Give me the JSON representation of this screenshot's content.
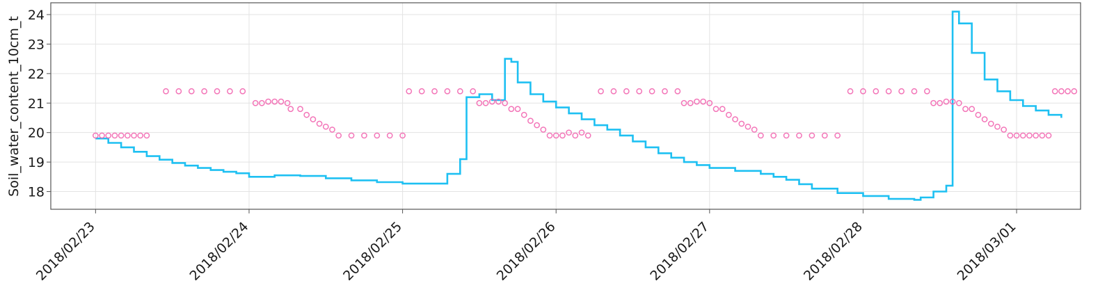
{
  "chart_data": {
    "type": "line",
    "title": "",
    "xlabel": "",
    "ylabel": "Soil_water_content_10cm_t",
    "x_axis": {
      "type": "date",
      "ticks": [
        "2018/02/23",
        "2018/02/24",
        "2018/02/25",
        "2018/02/26",
        "2018/02/27",
        "2018/02/28",
        "2018/03/01"
      ],
      "range": [
        "2018/02/22 17:00",
        "2018/03/01 10:00"
      ]
    },
    "y_axis": {
      "ticks": [
        18,
        19,
        20,
        21,
        22,
        23,
        24
      ],
      "range": [
        17.4,
        24.4
      ]
    },
    "grid": true,
    "legend": "none",
    "colors": {
      "line": "#1ec0f2",
      "markers": "#f266b0"
    },
    "series": [
      {
        "type": "step-line",
        "points": [
          [
            "2018/02/23 00:00",
            19.8
          ],
          [
            "2018/02/23 02:00",
            19.65
          ],
          [
            "2018/02/23 04:00",
            19.5
          ],
          [
            "2018/02/23 06:00",
            19.35
          ],
          [
            "2018/02/23 08:00",
            19.2
          ],
          [
            "2018/02/23 10:00",
            19.08
          ],
          [
            "2018/02/23 12:00",
            18.97
          ],
          [
            "2018/02/23 14:00",
            18.88
          ],
          [
            "2018/02/23 16:00",
            18.8
          ],
          [
            "2018/02/23 18:00",
            18.73
          ],
          [
            "2018/02/23 20:00",
            18.67
          ],
          [
            "2018/02/23 22:00",
            18.62
          ],
          [
            "2018/02/24 00:00",
            18.5
          ],
          [
            "2018/02/24 04:00",
            18.55
          ],
          [
            "2018/02/24 08:00",
            18.53
          ],
          [
            "2018/02/24 12:00",
            18.45
          ],
          [
            "2018/02/24 16:00",
            18.38
          ],
          [
            "2018/02/24 20:00",
            18.32
          ],
          [
            "2018/02/25 00:00",
            18.27
          ],
          [
            "2018/02/25 04:00",
            18.27
          ],
          [
            "2018/02/25 07:00",
            18.6
          ],
          [
            "2018/02/25 09:00",
            19.1
          ],
          [
            "2018/02/25 10:00",
            21.2
          ],
          [
            "2018/02/25 12:00",
            21.3
          ],
          [
            "2018/02/25 14:00",
            21.1
          ],
          [
            "2018/02/25 16:00",
            22.5
          ],
          [
            "2018/02/25 17:00",
            22.4
          ],
          [
            "2018/02/25 18:00",
            21.7
          ],
          [
            "2018/02/25 20:00",
            21.3
          ],
          [
            "2018/02/25 22:00",
            21.05
          ],
          [
            "2018/02/26 00:00",
            20.85
          ],
          [
            "2018/02/26 02:00",
            20.65
          ],
          [
            "2018/02/26 04:00",
            20.45
          ],
          [
            "2018/02/26 06:00",
            20.25
          ],
          [
            "2018/02/26 08:00",
            20.1
          ],
          [
            "2018/02/26 10:00",
            19.9
          ],
          [
            "2018/02/26 12:00",
            19.7
          ],
          [
            "2018/02/26 14:00",
            19.5
          ],
          [
            "2018/02/26 16:00",
            19.3
          ],
          [
            "2018/02/26 18:00",
            19.15
          ],
          [
            "2018/02/26 20:00",
            19.0
          ],
          [
            "2018/02/26 22:00",
            18.9
          ],
          [
            "2018/02/27 00:00",
            18.8
          ],
          [
            "2018/02/27 04:00",
            18.7
          ],
          [
            "2018/02/27 08:00",
            18.6
          ],
          [
            "2018/02/27 10:00",
            18.5
          ],
          [
            "2018/02/27 12:00",
            18.4
          ],
          [
            "2018/02/27 14:00",
            18.25
          ],
          [
            "2018/02/27 16:00",
            18.1
          ],
          [
            "2018/02/27 20:00",
            17.95
          ],
          [
            "2018/02/28 00:00",
            17.85
          ],
          [
            "2018/02/28 04:00",
            17.75
          ],
          [
            "2018/02/28 08:00",
            17.72
          ],
          [
            "2018/02/28 09:00",
            17.8
          ],
          [
            "2018/02/28 11:00",
            18.0
          ],
          [
            "2018/02/28 13:00",
            18.2
          ],
          [
            "2018/02/28 14:00",
            24.1
          ],
          [
            "2018/02/28 15:00",
            23.7
          ],
          [
            "2018/02/28 17:00",
            22.7
          ],
          [
            "2018/02/28 19:00",
            21.8
          ],
          [
            "2018/02/28 21:00",
            21.4
          ],
          [
            "2018/02/28 23:00",
            21.1
          ],
          [
            "2018/03/01 01:00",
            20.9
          ],
          [
            "2018/03/01 03:00",
            20.75
          ],
          [
            "2018/03/01 05:00",
            20.6
          ],
          [
            "2018/03/01 07:00",
            20.5
          ]
        ]
      },
      {
        "type": "scatter",
        "marker": "open-circle",
        "points": [
          [
            "2018/02/23 00:00",
            19.9
          ],
          [
            "2018/02/23 01:00",
            19.9
          ],
          [
            "2018/02/23 02:00",
            19.9
          ],
          [
            "2018/02/23 03:00",
            19.9
          ],
          [
            "2018/02/23 04:00",
            19.9
          ],
          [
            "2018/02/23 05:00",
            19.9
          ],
          [
            "2018/02/23 06:00",
            19.9
          ],
          [
            "2018/02/23 07:00",
            19.9
          ],
          [
            "2018/02/23 08:00",
            19.9
          ],
          [
            "2018/02/23 11:00",
            21.4
          ],
          [
            "2018/02/23 13:00",
            21.4
          ],
          [
            "2018/02/23 15:00",
            21.4
          ],
          [
            "2018/02/23 17:00",
            21.4
          ],
          [
            "2018/02/23 19:00",
            21.4
          ],
          [
            "2018/02/23 21:00",
            21.4
          ],
          [
            "2018/02/23 23:00",
            21.4
          ],
          [
            "2018/02/24 01:00",
            21.0
          ],
          [
            "2018/02/24 02:00",
            21.0
          ],
          [
            "2018/02/24 03:00",
            21.05
          ],
          [
            "2018/02/24 04:00",
            21.05
          ],
          [
            "2018/02/24 05:00",
            21.05
          ],
          [
            "2018/02/24 06:00",
            21.0
          ],
          [
            "2018/02/24 06:30",
            20.8
          ],
          [
            "2018/02/24 08:00",
            20.8
          ],
          [
            "2018/02/24 09:00",
            20.6
          ],
          [
            "2018/02/24 10:00",
            20.45
          ],
          [
            "2018/02/24 11:00",
            20.3
          ],
          [
            "2018/02/24 12:00",
            20.2
          ],
          [
            "2018/02/24 13:00",
            20.1
          ],
          [
            "2018/02/24 14:00",
            19.9
          ],
          [
            "2018/02/24 16:00",
            19.9
          ],
          [
            "2018/02/24 18:00",
            19.9
          ],
          [
            "2018/02/24 20:00",
            19.9
          ],
          [
            "2018/02/24 22:00",
            19.9
          ],
          [
            "2018/02/25 00:00",
            19.9
          ],
          [
            "2018/02/25 01:00",
            21.4
          ],
          [
            "2018/02/25 03:00",
            21.4
          ],
          [
            "2018/02/25 05:00",
            21.4
          ],
          [
            "2018/02/25 07:00",
            21.4
          ],
          [
            "2018/02/25 09:00",
            21.4
          ],
          [
            "2018/02/25 11:00",
            21.4
          ],
          [
            "2018/02/25 12:00",
            21.0
          ],
          [
            "2018/02/25 13:00",
            21.0
          ],
          [
            "2018/02/25 14:00",
            21.05
          ],
          [
            "2018/02/25 15:00",
            21.05
          ],
          [
            "2018/02/25 16:00",
            21.0
          ],
          [
            "2018/02/25 17:00",
            20.8
          ],
          [
            "2018/02/25 18:00",
            20.8
          ],
          [
            "2018/02/25 19:00",
            20.6
          ],
          [
            "2018/02/25 20:00",
            20.4
          ],
          [
            "2018/02/25 21:00",
            20.25
          ],
          [
            "2018/02/25 22:00",
            20.1
          ],
          [
            "2018/02/25 23:00",
            19.9
          ],
          [
            "2018/02/26 00:00",
            19.9
          ],
          [
            "2018/02/26 01:00",
            19.9
          ],
          [
            "2018/02/26 02:00",
            20.0
          ],
          [
            "2018/02/26 03:00",
            19.9
          ],
          [
            "2018/02/26 04:00",
            20.0
          ],
          [
            "2018/02/26 05:00",
            19.9
          ],
          [
            "2018/02/26 07:00",
            21.4
          ],
          [
            "2018/02/26 09:00",
            21.4
          ],
          [
            "2018/02/26 11:00",
            21.4
          ],
          [
            "2018/02/26 13:00",
            21.4
          ],
          [
            "2018/02/26 15:00",
            21.4
          ],
          [
            "2018/02/26 17:00",
            21.4
          ],
          [
            "2018/02/26 19:00",
            21.4
          ],
          [
            "2018/02/26 20:00",
            21.0
          ],
          [
            "2018/02/26 21:00",
            21.0
          ],
          [
            "2018/02/26 22:00",
            21.05
          ],
          [
            "2018/02/26 23:00",
            21.05
          ],
          [
            "2018/02/27 00:00",
            21.0
          ],
          [
            "2018/02/27 01:00",
            20.8
          ],
          [
            "2018/02/27 02:00",
            20.8
          ],
          [
            "2018/02/27 03:00",
            20.6
          ],
          [
            "2018/02/27 04:00",
            20.45
          ],
          [
            "2018/02/27 05:00",
            20.3
          ],
          [
            "2018/02/27 06:00",
            20.2
          ],
          [
            "2018/02/27 07:00",
            20.1
          ],
          [
            "2018/02/27 08:00",
            19.9
          ],
          [
            "2018/02/27 10:00",
            19.9
          ],
          [
            "2018/02/27 12:00",
            19.9
          ],
          [
            "2018/02/27 14:00",
            19.9
          ],
          [
            "2018/02/27 16:00",
            19.9
          ],
          [
            "2018/02/27 18:00",
            19.9
          ],
          [
            "2018/02/27 20:00",
            19.9
          ],
          [
            "2018/02/27 22:00",
            21.4
          ],
          [
            "2018/02/28 00:00",
            21.4
          ],
          [
            "2018/02/28 02:00",
            21.4
          ],
          [
            "2018/02/28 04:00",
            21.4
          ],
          [
            "2018/02/28 06:00",
            21.4
          ],
          [
            "2018/02/28 08:00",
            21.4
          ],
          [
            "2018/02/28 10:00",
            21.4
          ],
          [
            "2018/02/28 11:00",
            21.0
          ],
          [
            "2018/02/28 12:00",
            21.0
          ],
          [
            "2018/02/28 13:00",
            21.05
          ],
          [
            "2018/02/28 14:00",
            21.05
          ],
          [
            "2018/02/28 15:00",
            21.0
          ],
          [
            "2018/02/28 16:00",
            20.8
          ],
          [
            "2018/02/28 17:00",
            20.8
          ],
          [
            "2018/02/28 18:00",
            20.6
          ],
          [
            "2018/02/28 19:00",
            20.45
          ],
          [
            "2018/02/28 20:00",
            20.3
          ],
          [
            "2018/02/28 21:00",
            20.2
          ],
          [
            "2018/02/28 22:00",
            20.1
          ],
          [
            "2018/02/28 23:00",
            19.9
          ],
          [
            "2018/03/01 00:00",
            19.9
          ],
          [
            "2018/03/01 01:00",
            19.9
          ],
          [
            "2018/03/01 02:00",
            19.9
          ],
          [
            "2018/03/01 03:00",
            19.9
          ],
          [
            "2018/03/01 04:00",
            19.9
          ],
          [
            "2018/03/01 05:00",
            19.9
          ],
          [
            "2018/03/01 06:00",
            21.4
          ],
          [
            "2018/03/01 07:00",
            21.4
          ],
          [
            "2018/03/01 08:00",
            21.4
          ],
          [
            "2018/03/01 09:00",
            21.4
          ]
        ]
      }
    ]
  }
}
